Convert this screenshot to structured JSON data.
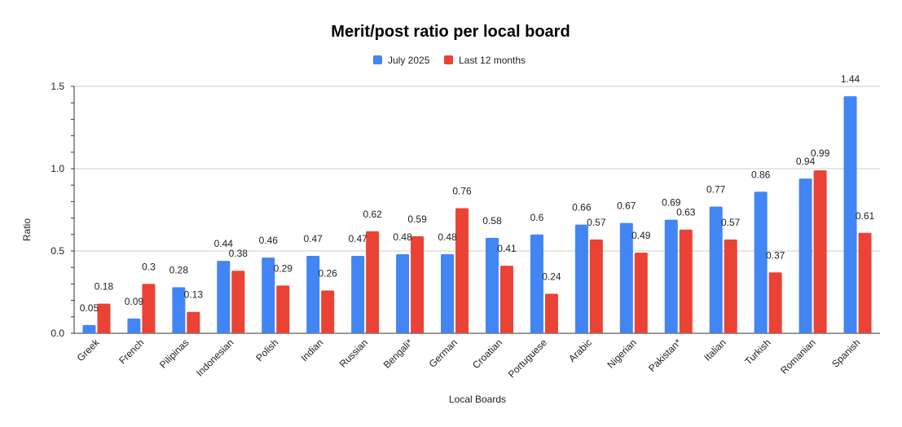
{
  "chart_data": {
    "type": "bar",
    "title": "Merit/post ratio per local board",
    "xlabel": "Local Boards",
    "ylabel": "Ratio",
    "ylim": [
      0,
      1.5
    ],
    "yticks": [
      "0.0",
      "0.5",
      "1.0",
      "1.5"
    ],
    "grid": true,
    "legend_position": "top",
    "categories": [
      "Greek",
      "French",
      "Pilipinas",
      "Indonesian",
      "Polish",
      "Indian",
      "Russian",
      "Bengali*",
      "German",
      "Croatian",
      "Portuguese",
      "Arabic",
      "Nigerian",
      "Pakistan*",
      "Italian",
      "Turkish",
      "Romanian",
      "Spanish"
    ],
    "series": [
      {
        "name": "July 2025",
        "color": "#4285f4",
        "values": [
          0.05,
          0.09,
          0.28,
          0.44,
          0.46,
          0.47,
          0.47,
          0.48,
          0.48,
          0.58,
          0.6,
          0.66,
          0.67,
          0.69,
          0.77,
          0.86,
          0.94,
          1.44
        ]
      },
      {
        "name": "Last 12 months",
        "color": "#ea4335",
        "values": [
          0.18,
          0.3,
          0.13,
          0.38,
          0.29,
          0.26,
          0.62,
          0.59,
          0.76,
          0.41,
          0.24,
          0.57,
          0.49,
          0.63,
          0.57,
          0.37,
          0.99,
          0.61
        ]
      }
    ]
  }
}
